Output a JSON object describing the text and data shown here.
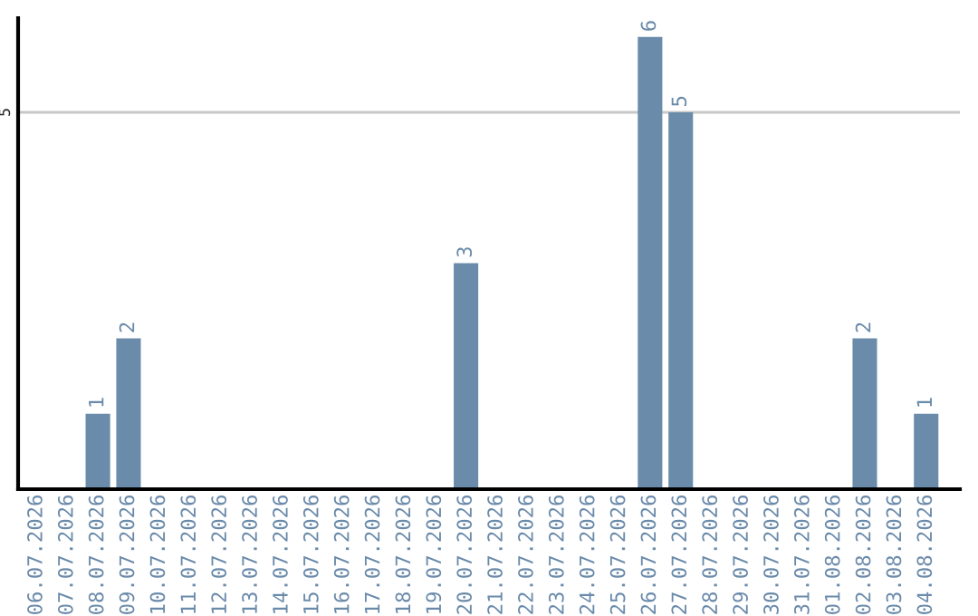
{
  "chart_data": {
    "type": "bar",
    "categories": [
      "06.07.2026",
      "07.07.2026",
      "08.07.2026",
      "09.07.2026",
      "10.07.2026",
      "11.07.2026",
      "12.07.2026",
      "13.07.2026",
      "14.07.2026",
      "15.07.2026",
      "16.07.2026",
      "17.07.2026",
      "18.07.2026",
      "19.07.2026",
      "20.07.2026",
      "21.07.2026",
      "22.07.2026",
      "23.07.2026",
      "24.07.2026",
      "25.07.2026",
      "26.07.2026",
      "27.07.2026",
      "28.07.2026",
      "29.07.2026",
      "30.07.2026",
      "31.07.2026",
      "01.08.2026",
      "02.08.2026",
      "03.08.2026",
      "04.08.2026"
    ],
    "values": [
      0,
      0,
      1,
      2,
      0,
      0,
      0,
      0,
      0,
      0,
      0,
      0,
      0,
      0,
      3,
      0,
      0,
      0,
      0,
      0,
      6,
      5,
      0,
      0,
      0,
      0,
      0,
      2,
      0,
      1
    ],
    "value_labels": [
      null,
      null,
      "1",
      "2",
      null,
      null,
      null,
      null,
      null,
      null,
      null,
      null,
      null,
      null,
      "3",
      null,
      null,
      null,
      null,
      null,
      "6",
      "5",
      null,
      null,
      null,
      null,
      null,
      "2",
      null,
      "1"
    ],
    "color": "#6a8caa",
    "ylim": [
      0,
      6.25
    ],
    "yticks": [
      5
    ],
    "grid": "y",
    "legend": false
  }
}
